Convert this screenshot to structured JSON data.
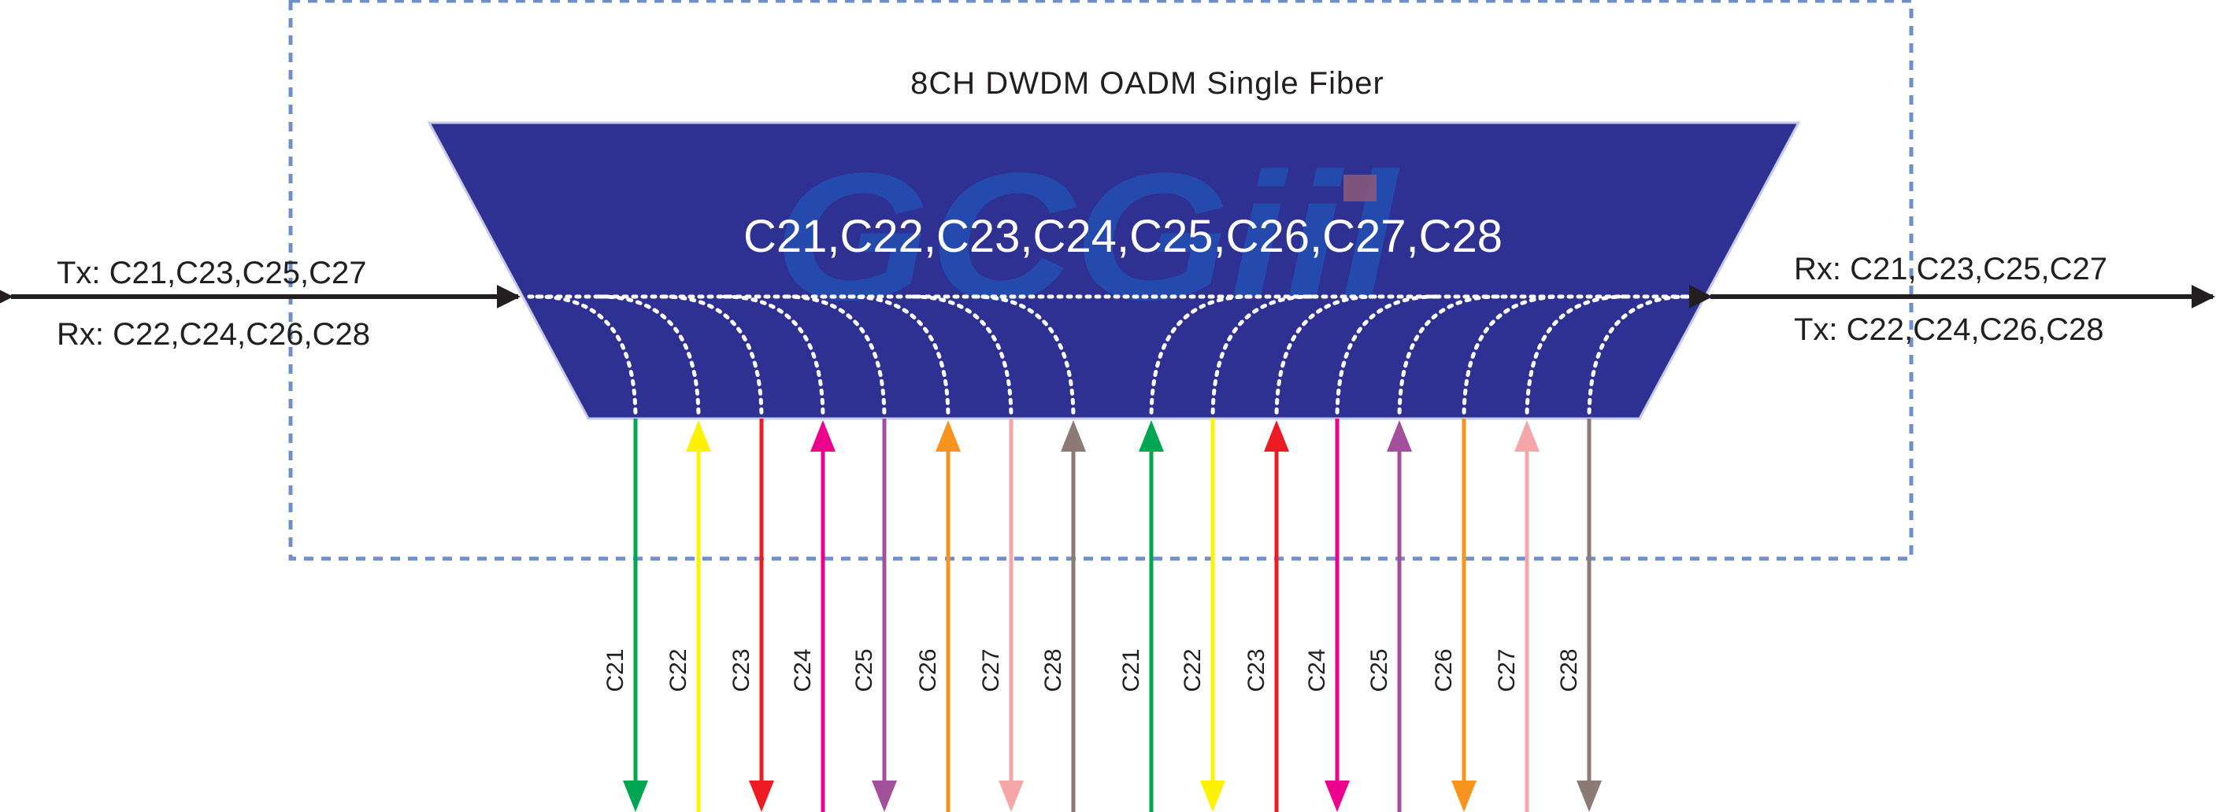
{
  "title": "8CH DWDM OADM Single Fiber",
  "channel_line": [
    "C21",
    ",",
    "C22",
    ",",
    "C23",
    ",",
    "C24",
    ",",
    "C25",
    ",",
    "C26",
    ",",
    "C27",
    ",",
    "C28"
  ],
  "left": {
    "tx": "Tx: C21,C23,C25,C27",
    "rx": "Rx: C22,C24,C26,C28"
  },
  "right": {
    "rx": "Rx: C21,C23,C25,C27",
    "tx": "Tx: C22,C24,C26,C28"
  },
  "ports": [
    {
      "label": "C21",
      "color": "#00a651",
      "dir": "down"
    },
    {
      "label": "C22",
      "color": "#fff200",
      "dir": "up"
    },
    {
      "label": "C23",
      "color": "#ed1c24",
      "dir": "down"
    },
    {
      "label": "C24",
      "color": "#ec008c",
      "dir": "up"
    },
    {
      "label": "C25",
      "color": "#a3509c",
      "dir": "down"
    },
    {
      "label": "C26",
      "color": "#f7941d",
      "dir": "up"
    },
    {
      "label": "C27",
      "color": "#f4a6a8",
      "dir": "down"
    },
    {
      "label": "C28",
      "color": "#8c7b75",
      "dir": "up"
    },
    {
      "label": "C21",
      "color": "#00a651",
      "dir": "up"
    },
    {
      "label": "C22",
      "color": "#fff200",
      "dir": "down"
    },
    {
      "label": "C23",
      "color": "#ed1c24",
      "dir": "up"
    },
    {
      "label": "C24",
      "color": "#ec008c",
      "dir": "down"
    },
    {
      "label": "C25",
      "color": "#a3509c",
      "dir": "up"
    },
    {
      "label": "C26",
      "color": "#f7941d",
      "dir": "down"
    },
    {
      "label": "C27",
      "color": "#f4a6a8",
      "dir": "up"
    },
    {
      "label": "C28",
      "color": "#8c7b75",
      "dir": "down"
    }
  ],
  "colors": {
    "module": "#2e3192",
    "module_border": "#c8cbe6",
    "frame": "#6e8fc9",
    "arrow": "#231f20",
    "watermark": "#1f5fc4",
    "watermark_accent": "#8a5a7a"
  },
  "watermark_text": "GCGiil"
}
